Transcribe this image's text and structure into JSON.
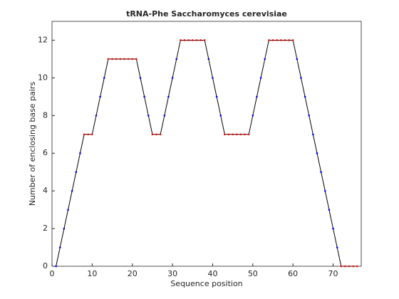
{
  "chart_data": {
    "type": "line",
    "title": "tRNA-Phe Saccharomyces cerevisiae",
    "xlabel": "Sequence position",
    "ylabel": "Number of enclosing base pairs",
    "x": [
      1,
      2,
      3,
      4,
      5,
      6,
      7,
      8,
      9,
      10,
      11,
      12,
      13,
      14,
      15,
      16,
      17,
      18,
      19,
      20,
      21,
      22,
      23,
      24,
      25,
      26,
      27,
      28,
      29,
      30,
      31,
      32,
      33,
      34,
      35,
      36,
      37,
      38,
      39,
      40,
      41,
      42,
      43,
      44,
      45,
      46,
      47,
      48,
      49,
      50,
      51,
      52,
      53,
      54,
      55,
      56,
      57,
      58,
      59,
      60,
      61,
      62,
      63,
      64,
      65,
      66,
      67,
      68,
      69,
      70,
      71,
      72,
      73,
      74,
      75,
      76
    ],
    "series": [
      {
        "color": "#000000",
        "marker_color": "#0000ff",
        "plateau_marker_color": "#ff0000",
        "values": [
          0,
          1,
          2,
          3,
          4,
          5,
          6,
          7,
          7,
          7,
          8,
          9,
          10,
          11,
          11,
          11,
          11,
          11,
          11,
          11,
          11,
          10,
          9,
          8,
          7,
          7,
          7,
          8,
          9,
          10,
          11,
          12,
          12,
          12,
          12,
          12,
          12,
          12,
          11,
          10,
          9,
          8,
          7,
          7,
          7,
          7,
          7,
          7,
          7,
          8,
          9,
          10,
          11,
          12,
          12,
          12,
          12,
          12,
          12,
          12,
          11,
          10,
          9,
          8,
          7,
          6,
          5,
          4,
          3,
          2,
          1,
          0,
          0,
          0,
          0,
          0
        ]
      }
    ],
    "xlim": [
      0,
      77
    ],
    "ylim": [
      0,
      13
    ],
    "xticks": [
      0,
      10,
      20,
      30,
      40,
      50,
      60,
      70
    ],
    "yticks": [
      0,
      2,
      4,
      6,
      8,
      10,
      12
    ]
  }
}
